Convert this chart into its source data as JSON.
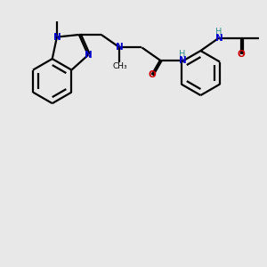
{
  "bg_color": "#e8e8e8",
  "bond_color": "#000000",
  "N_color": "#0000cc",
  "O_color": "#cc0000",
  "H_color": "#2e8b8b",
  "lw": 1.6,
  "figsize": [
    3.0,
    3.0
  ],
  "dpi": 100,
  "xlim": [
    0,
    10
  ],
  "ylim": [
    0,
    10
  ]
}
